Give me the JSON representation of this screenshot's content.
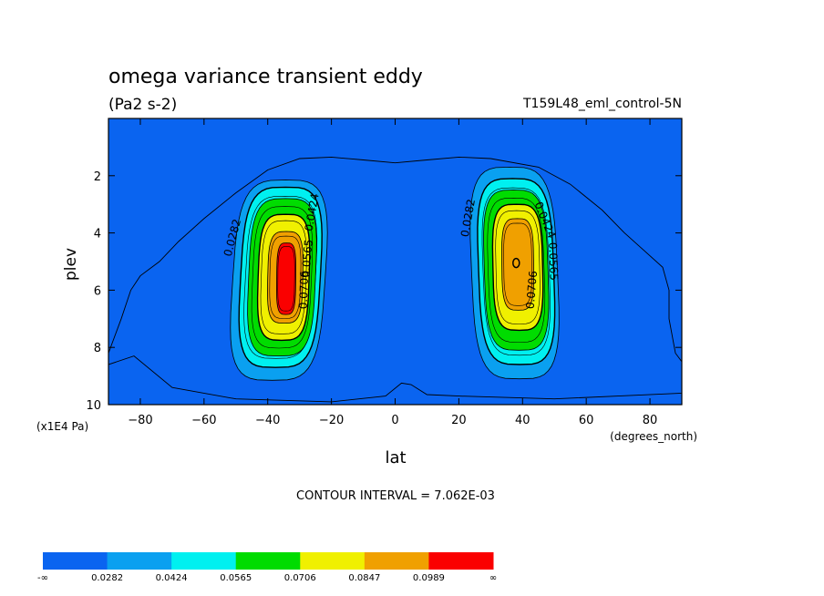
{
  "chart_data": {
    "type": "contour",
    "title": "omega variance transient eddy",
    "units": "(Pa2 s-2)",
    "dataset_label": "T159L48_eml_control-5N",
    "xlabel": "lat",
    "xunits": "(degrees_north)",
    "ylabel": "plev",
    "yunits": "(x1E4 Pa)",
    "xlim": [
      -90,
      90
    ],
    "ylim": [
      10,
      0
    ],
    "x_ticks": [
      -80,
      -60,
      -40,
      -20,
      0,
      20,
      40,
      60,
      80
    ],
    "y_ticks": [
      2,
      4,
      6,
      8,
      10
    ],
    "contour_interval_text": "CONTOUR INTERVAL = 7.062E-03",
    "contour_labels": [
      {
        "text": "0.0282",
        "x": -50,
        "y": 4.2,
        "angle": -75
      },
      {
        "text": "0.0424",
        "x": -25,
        "y": 3.3,
        "angle": -80
      },
      {
        "text": "0.0565",
        "x": -26.5,
        "y": 4.9,
        "angle": -85
      },
      {
        "text": "0.0706",
        "x": -27.5,
        "y": 6.0,
        "angle": -88
      },
      {
        "text": "0.0282",
        "x": 24,
        "y": 3.5,
        "angle": -80
      },
      {
        "text": "0.0424",
        "x": 46,
        "y": 3.6,
        "angle": 68
      },
      {
        "text": "0.0565",
        "x": 48.5,
        "y": 5.0,
        "angle": 88
      },
      {
        "text": "0.0706",
        "x": 44,
        "y": 6.0,
        "angle": -85
      }
    ],
    "regions": [
      {
        "center": [
          -34,
          5.6
        ],
        "peak": 0.09
      },
      {
        "center": [
          38,
          5.1
        ],
        "peak": 0.083
      }
    ],
    "colorbar": {
      "colors": [
        "#0a64f0",
        "#0aa0f0",
        "#00f0f0",
        "#00dc00",
        "#f0f000",
        "#f0a000",
        "#fa0000"
      ],
      "labels": [
        "-∞",
        "0.0282",
        "0.0424",
        "0.0565",
        "0.0706",
        "0.0847",
        "0.0989",
        "∞"
      ]
    }
  }
}
